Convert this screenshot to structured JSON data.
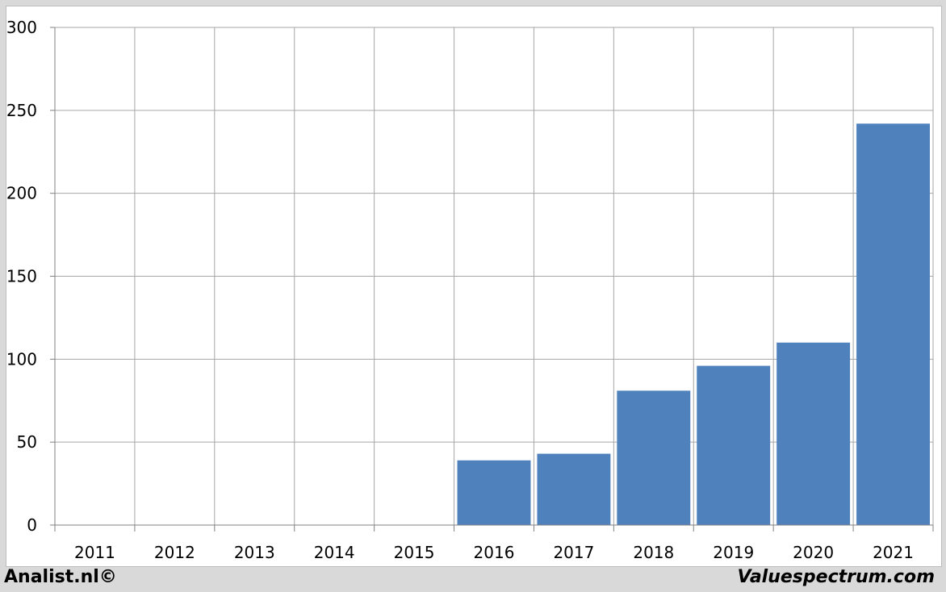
{
  "footer": {
    "left": "Analist.nl©",
    "right": "Valuespectrum.com"
  },
  "colors": {
    "bar": "#4f81bd",
    "grid": "#a6a6a6",
    "axis": "#808080",
    "background": "#ffffff",
    "outer": "#d9d9d9"
  },
  "chart_data": {
    "type": "bar",
    "categories": [
      "2011",
      "2012",
      "2013",
      "2014",
      "2015",
      "2016",
      "2017",
      "2018",
      "2019",
      "2020",
      "2021"
    ],
    "values": [
      null,
      null,
      null,
      null,
      null,
      39,
      43,
      81,
      96,
      110,
      242
    ],
    "yticks": [
      0,
      50,
      100,
      150,
      200,
      250,
      300
    ],
    "ylim": [
      0,
      300
    ],
    "grid": true,
    "title": "",
    "xlabel": "",
    "ylabel": ""
  }
}
